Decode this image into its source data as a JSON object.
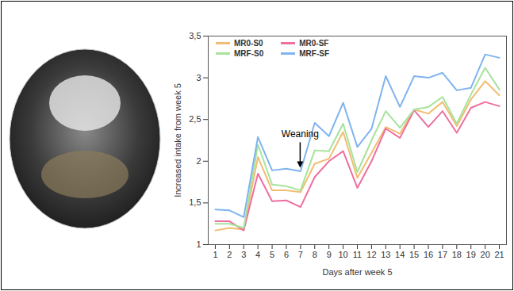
{
  "chart_data": {
    "type": "line",
    "x_label": "Days after week 5",
    "y_label": "Increased intake from week 5",
    "x": [
      1,
      2,
      3,
      4,
      5,
      6,
      7,
      8,
      9,
      10,
      11,
      12,
      13,
      14,
      15,
      16,
      17,
      18,
      19,
      20,
      21
    ],
    "xlim": [
      0.5,
      21.5
    ],
    "xticks": [
      1,
      2,
      3,
      4,
      5,
      6,
      7,
      8,
      9,
      10,
      11,
      12,
      13,
      14,
      15,
      16,
      17,
      18,
      19,
      20,
      21
    ],
    "ylim": [
      1,
      3.5
    ],
    "yticks": [
      1,
      {
        "value": 1.5,
        "label": "1,5"
      },
      2,
      {
        "value": 2.5,
        "label": "2,5"
      },
      3,
      {
        "value": 3.5,
        "label": "3,5"
      }
    ],
    "grid": false,
    "legend": "top-left",
    "annotations": [
      {
        "text": "Weaning",
        "x": 7
      }
    ],
    "series": [
      {
        "name": "MR0-S0",
        "color": "#f2bd72",
        "values": [
          1.17,
          1.2,
          1.18,
          2.05,
          1.65,
          1.65,
          1.63,
          1.97,
          2.03,
          2.35,
          1.8,
          2.1,
          2.41,
          2.33,
          2.62,
          2.57,
          2.71,
          2.42,
          2.74,
          2.96,
          2.79
        ]
      },
      {
        "name": "MR0-SF",
        "color": "#ee6fa0",
        "values": [
          1.28,
          1.28,
          1.17,
          1.85,
          1.52,
          1.53,
          1.45,
          1.81,
          2.0,
          2.12,
          1.68,
          2.0,
          2.39,
          2.28,
          2.61,
          2.41,
          2.6,
          2.34,
          2.64,
          2.71,
          2.66
        ]
      },
      {
        "name": "MRF-S0",
        "color": "#a6e39c",
        "values": [
          1.25,
          1.25,
          1.2,
          2.2,
          1.72,
          1.7,
          1.65,
          2.13,
          2.12,
          2.45,
          1.87,
          2.25,
          2.6,
          2.4,
          2.62,
          2.65,
          2.77,
          2.45,
          2.8,
          3.12,
          2.86
        ]
      },
      {
        "name": "MRF-SF",
        "color": "#80b4ef",
        "values": [
          1.42,
          1.41,
          1.33,
          2.29,
          1.89,
          1.91,
          1.88,
          2.46,
          2.3,
          2.7,
          2.17,
          2.39,
          3.02,
          2.65,
          3.02,
          3.0,
          3.06,
          2.85,
          2.88,
          3.28,
          3.24
        ]
      }
    ]
  }
}
